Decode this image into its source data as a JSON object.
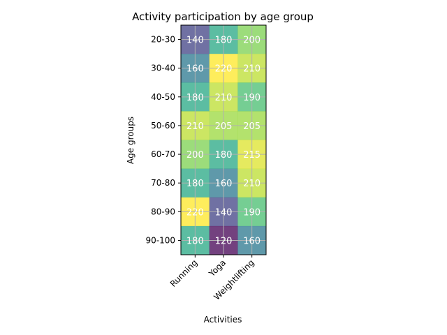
{
  "chart_data": {
    "type": "heatmap",
    "title": "Activity participation by age group",
    "xlabel": "Activities",
    "ylabel": "Age groups",
    "x_categories": [
      "Running",
      "Yoga",
      "Weightlifting"
    ],
    "y_categories": [
      "20-30",
      "30-40",
      "40-50",
      "50-60",
      "60-70",
      "70-80",
      "80-90",
      "90-100"
    ],
    "values": [
      [
        140,
        180,
        200
      ],
      [
        160,
        220,
        210
      ],
      [
        180,
        210,
        190
      ],
      [
        210,
        205,
        205
      ],
      [
        200,
        180,
        215
      ],
      [
        180,
        160,
        210
      ],
      [
        220,
        140,
        190
      ],
      [
        180,
        120,
        160
      ]
    ],
    "colormap": "viridis",
    "value_range": [
      120,
      220
    ],
    "grid": true,
    "annotated": true
  }
}
